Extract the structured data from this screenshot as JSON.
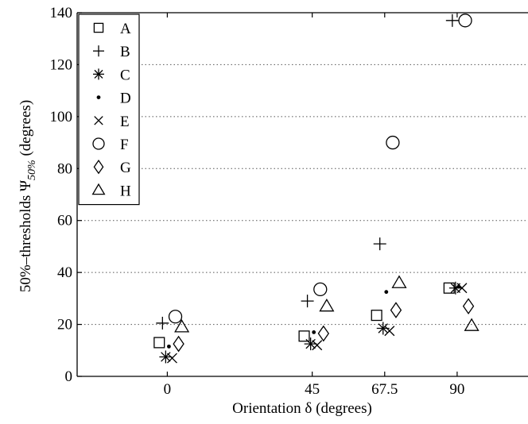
{
  "chart_data": {
    "type": "scatter",
    "xlabel": "Orientation δ (degrees)",
    "ylabel": "50%–thresholds Ψ50% (degrees)",
    "ylabel_main": "50%–thresholds Ψ",
    "ylabel_sub": "50%",
    "ylabel_unit": " (degrees)",
    "xlim": [
      -28,
      112
    ],
    "ylim": [
      0,
      140
    ],
    "x_ticks": [
      0,
      45,
      67.5,
      90
    ],
    "x_tick_labels": [
      "0",
      "45",
      "67.5",
      "90"
    ],
    "y_ticks": [
      0,
      20,
      40,
      60,
      80,
      100,
      120,
      140
    ],
    "y_tick_labels": [
      "0",
      "20",
      "40",
      "60",
      "80",
      "100",
      "120",
      "140"
    ],
    "grid": "horizontal dotted",
    "legend_position": "top-left",
    "series": [
      {
        "name": "A",
        "marker": "square",
        "points": [
          [
            -2.5,
            13
          ],
          [
            42.5,
            15.5
          ],
          [
            65,
            23.5
          ],
          [
            87.5,
            34
          ]
        ]
      },
      {
        "name": "B",
        "marker": "plus",
        "points": [
          [
            -1.5,
            20.5
          ],
          [
            43.5,
            29
          ],
          [
            66,
            51
          ],
          [
            88.5,
            137
          ]
        ]
      },
      {
        "name": "C",
        "marker": "asterisk",
        "points": [
          [
            -0.5,
            7.5
          ],
          [
            44.5,
            12.5
          ],
          [
            67,
            18.5
          ],
          [
            89.5,
            34
          ]
        ]
      },
      {
        "name": "D",
        "marker": "dot",
        "points": [
          [
            0.5,
            11.5
          ],
          [
            45.5,
            17
          ],
          [
            68,
            32.5
          ],
          [
            90.5,
            34.5
          ]
        ]
      },
      {
        "name": "E",
        "marker": "x",
        "points": [
          [
            1.5,
            7
          ],
          [
            46.5,
            12
          ],
          [
            69,
            17.5
          ],
          [
            91.5,
            34
          ]
        ]
      },
      {
        "name": "F",
        "marker": "circle",
        "points": [
          [
            2.5,
            23
          ],
          [
            47.5,
            33.5
          ],
          [
            70,
            90
          ],
          [
            92.5,
            137
          ]
        ]
      },
      {
        "name": "G",
        "marker": "diamond",
        "points": [
          [
            3.5,
            12.5
          ],
          [
            48.5,
            16.5
          ],
          [
            71,
            25.5
          ],
          [
            93.5,
            27
          ]
        ]
      },
      {
        "name": "H",
        "marker": "triangle",
        "points": [
          [
            4.5,
            19
          ],
          [
            49.5,
            27
          ],
          [
            72,
            36
          ],
          [
            94.5,
            19.5
          ]
        ]
      }
    ]
  }
}
